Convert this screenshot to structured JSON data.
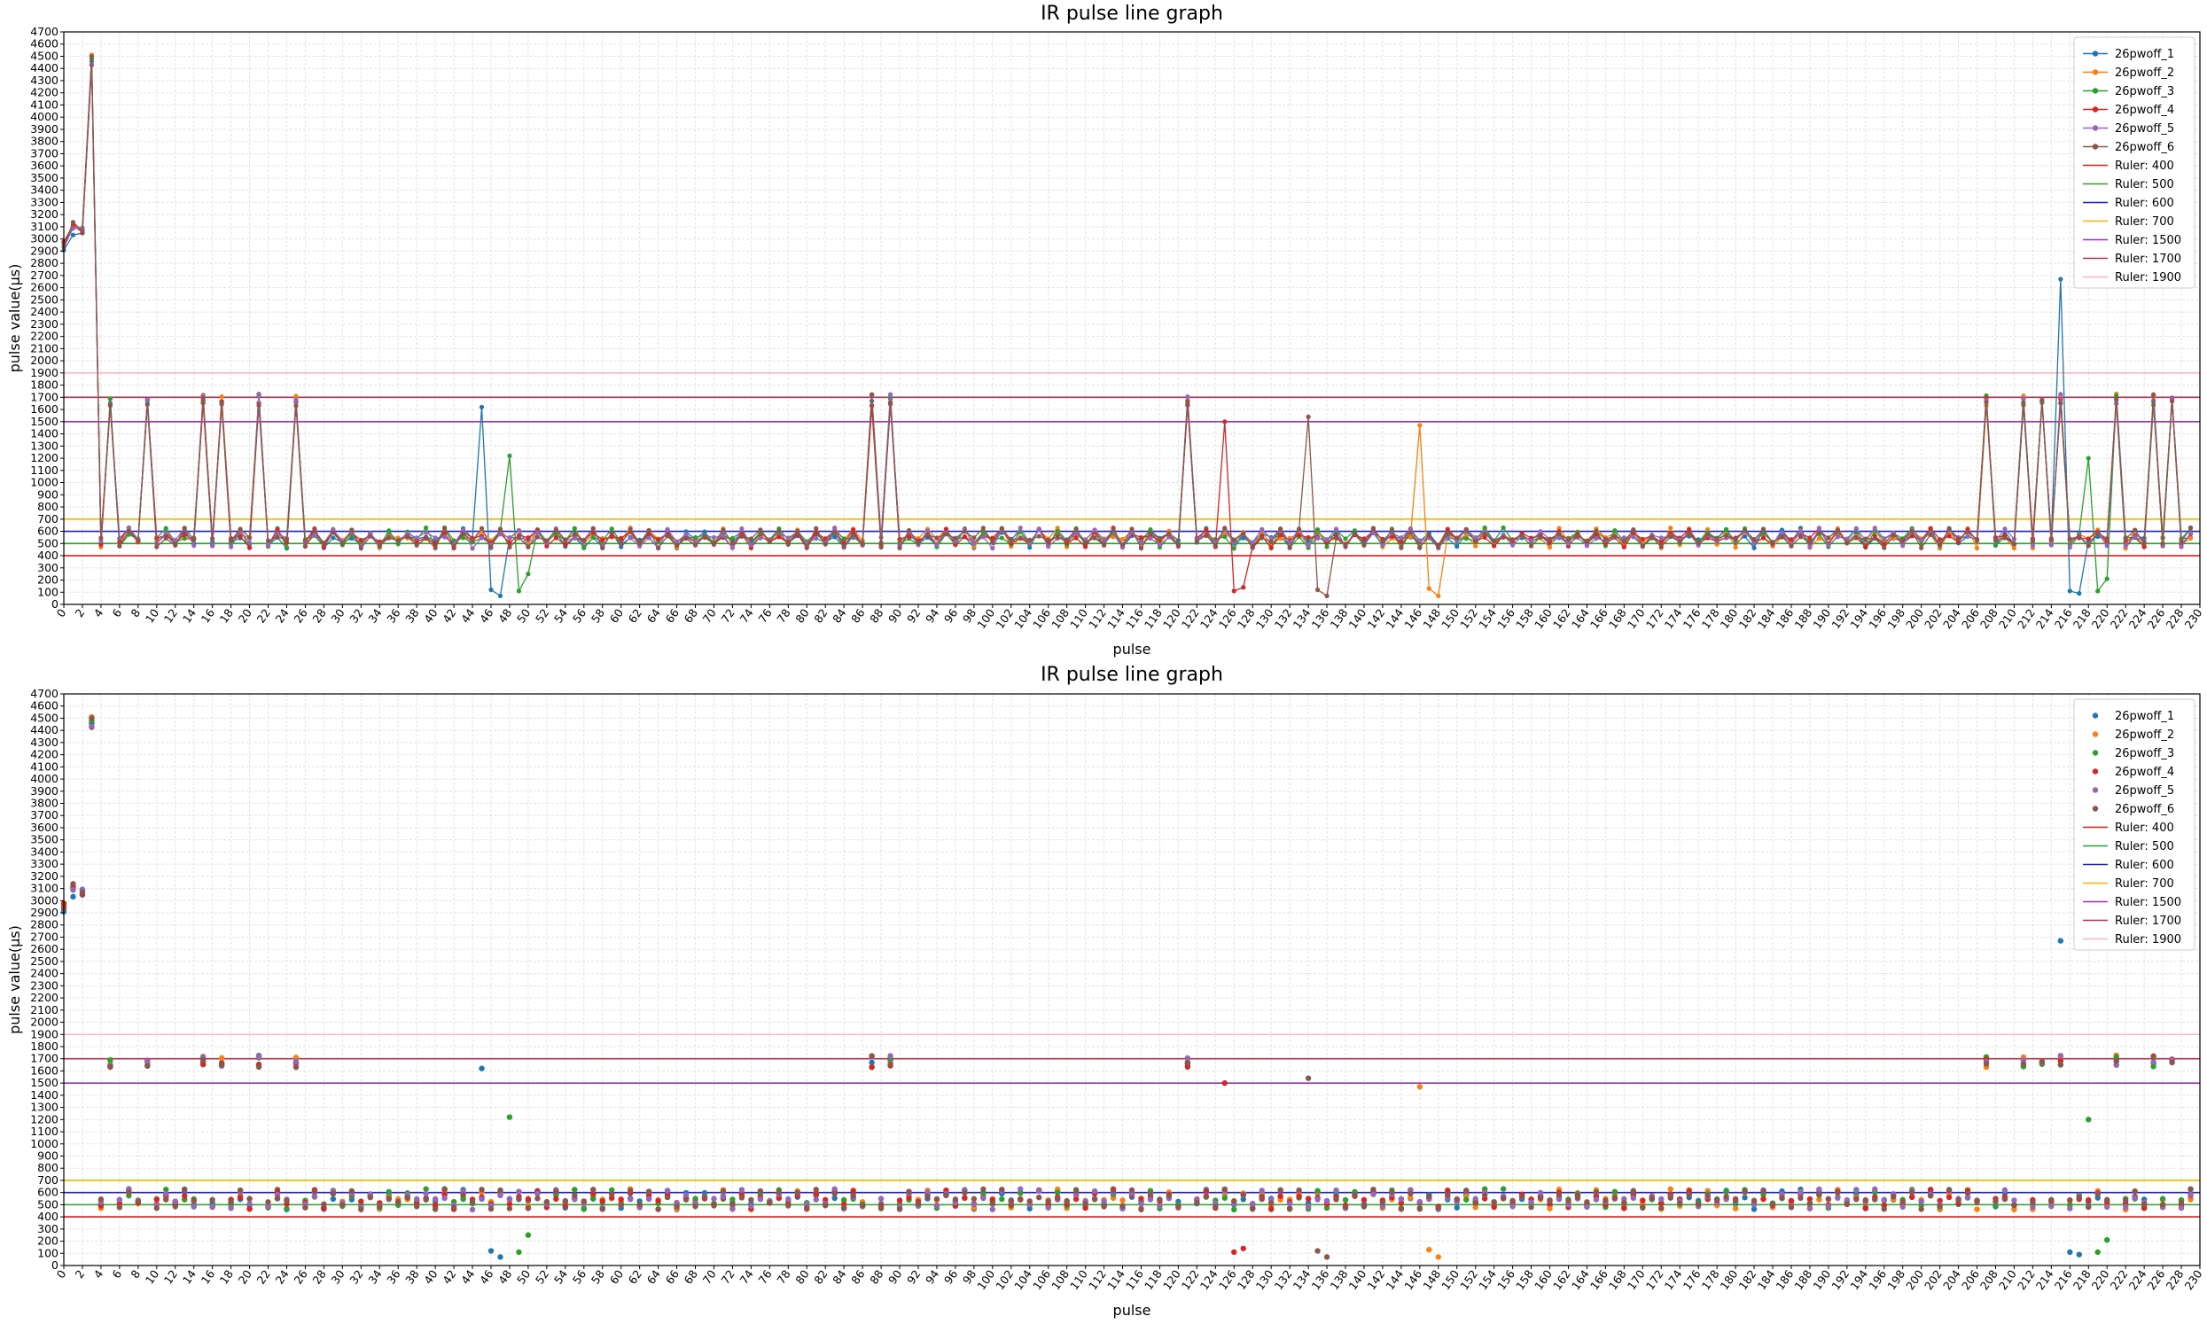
{
  "colors": {
    "26pwoff_1": "#1f77b4",
    "26pwoff_2": "#ff7f0e",
    "26pwoff_3": "#2ca02c",
    "26pwoff_4": "#d62728",
    "26pwoff_5": "#9467bd",
    "26pwoff_6": "#8c564b",
    "Ruler: 400": "#e41a1c",
    "Ruler: 500": "#2ca02c",
    "Ruler: 600": "#1f1fd0",
    "Ruler: 700": "#ffb000",
    "Ruler: 1500": "#9b30c0",
    "Ruler: 1700": "#b03050",
    "Ruler: 1900": "#ffb6c1"
  },
  "chart_data": [
    {
      "type": "line",
      "title": "IR pulse line graph",
      "xlabel": "pulse",
      "ylabel": "pulse value(μs)",
      "xlim": [
        0,
        230
      ],
      "ylim": [
        0,
        4700
      ],
      "x_tick_step": 2,
      "y_tick_step": 100,
      "grid": true,
      "legend": "top-right",
      "series_names": [
        "26pwoff_1",
        "26pwoff_2",
        "26pwoff_3",
        "26pwoff_4",
        "26pwoff_5",
        "26pwoff_6"
      ],
      "rulers": [
        {
          "name": "Ruler: 400",
          "value": 400
        },
        {
          "name": "Ruler: 500",
          "value": 500
        },
        {
          "name": "Ruler: 600",
          "value": 600
        },
        {
          "name": "Ruler: 700",
          "value": 700
        },
        {
          "name": "Ruler: 1500",
          "value": 1500
        },
        {
          "name": "Ruler: 1700",
          "value": 1700
        },
        {
          "name": "Ruler: 1900",
          "value": 1900
        }
      ]
    },
    {
      "type": "scatter",
      "title": "IR pulse line graph",
      "xlabel": "pulse",
      "ylabel": "pulse value(μs)",
      "xlim": [
        0,
        230
      ],
      "ylim": [
        0,
        4700
      ],
      "x_tick_step": 2,
      "y_tick_step": 100,
      "grid": true,
      "legend": "top-right",
      "series_names": [
        "26pwoff_1",
        "26pwoff_2",
        "26pwoff_3",
        "26pwoff_4",
        "26pwoff_5",
        "26pwoff_6"
      ],
      "rulers": [
        {
          "name": "Ruler: 400",
          "value": 400
        },
        {
          "name": "Ruler: 500",
          "value": 500
        },
        {
          "name": "Ruler: 600",
          "value": 600
        },
        {
          "name": "Ruler: 700",
          "value": 700
        },
        {
          "name": "Ruler: 1500",
          "value": 1500
        },
        {
          "name": "Ruler: 1700",
          "value": 1700
        },
        {
          "name": "Ruler: 1900",
          "value": 1900
        }
      ]
    }
  ],
  "series": {
    "base": {
      "head": [
        2930,
        3080,
        3050,
        4480
      ],
      "long_high": [
        5,
        9,
        15,
        17,
        21,
        25,
        87,
        89,
        121,
        207,
        211,
        213,
        215,
        221,
        225,
        227
      ],
      "long_value": 1700,
      "low_even": 500,
      "low_odd": 560
    },
    "overrides": [
      {
        "series": "26pwoff_1",
        "x": 45,
        "y": 1620
      },
      {
        "series": "26pwoff_1",
        "x": 46,
        "y": 120
      },
      {
        "series": "26pwoff_1",
        "x": 47,
        "y": 70
      },
      {
        "series": "26pwoff_3",
        "x": 48,
        "y": 1220
      },
      {
        "series": "26pwoff_3",
        "x": 49,
        "y": 110
      },
      {
        "series": "26pwoff_3",
        "x": 50,
        "y": 250
      },
      {
        "series": "26pwoff_4",
        "x": 125,
        "y": 1500
      },
      {
        "series": "26pwoff_4",
        "x": 126,
        "y": 110
      },
      {
        "series": "26pwoff_4",
        "x": 127,
        "y": 140
      },
      {
        "series": "26pwoff_6",
        "x": 134,
        "y": 1540
      },
      {
        "series": "26pwoff_6",
        "x": 135,
        "y": 120
      },
      {
        "series": "26pwoff_6",
        "x": 136,
        "y": 70
      },
      {
        "series": "26pwoff_2",
        "x": 146,
        "y": 1470
      },
      {
        "series": "26pwoff_2",
        "x": 147,
        "y": 130
      },
      {
        "series": "26pwoff_2",
        "x": 148,
        "y": 70
      },
      {
        "series": "26pwoff_1",
        "x": 215,
        "y": 2670
      },
      {
        "series": "26pwoff_1",
        "x": 216,
        "y": 110
      },
      {
        "series": "26pwoff_1",
        "x": 217,
        "y": 90
      },
      {
        "series": "26pwoff_3",
        "x": 218,
        "y": 1200
      },
      {
        "series": "26pwoff_3",
        "x": 219,
        "y": 110
      },
      {
        "series": "26pwoff_3",
        "x": 220,
        "y": 210
      }
    ]
  }
}
